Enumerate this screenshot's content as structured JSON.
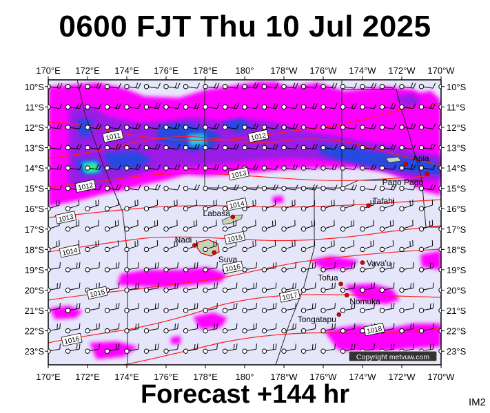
{
  "header": {
    "title": "0600 FJT Thu 10 Jul 2025"
  },
  "footer": {
    "forecast_label": "Forecast +144 hr",
    "image_code": "IM2"
  },
  "copyright": "Copyright metvuw.com",
  "colors": {
    "ocean": "#e6e6fb",
    "land": "#c8d3b8",
    "rain_magenta": "#ff00ff",
    "rain_purple": "#9a1ee6",
    "rain_blue": "#2848e0",
    "rain_cyan": "#20d0e8",
    "rain_green": "#30f070",
    "isobar": "#ff2020"
  },
  "map": {
    "lon_labels_top": [
      "170°E",
      "172°E",
      "174°E",
      "176°E",
      "178°E",
      "180°",
      "178°W",
      "176°W",
      "174°W",
      "172°W",
      "170°W"
    ],
    "lon_labels_bottom": [
      "170°E",
      "172°E",
      "174°E",
      "176°E",
      "178°E",
      "180°",
      "178°W",
      "176°W",
      "174°W",
      "172°W",
      "170°W"
    ],
    "lat_labels": [
      "10°S",
      "11°S",
      "12°S",
      "13°S",
      "14°S",
      "15°S",
      "16°S",
      "17°S",
      "18°S",
      "19°S",
      "20°S",
      "21°S",
      "22°S",
      "23°S"
    ],
    "places": [
      {
        "name": "Apia",
        "lon": -171.8,
        "lat": -13.8
      },
      {
        "name": "Pago Pago",
        "lon": -170.7,
        "lat": -14.3
      },
      {
        "name": "Tafahi",
        "lon": -173.7,
        "lat": -15.85
      },
      {
        "name": "Labasa",
        "lon": 179.4,
        "lat": -16.4
      },
      {
        "name": "Nadi",
        "lon": 177.45,
        "lat": -17.8
      },
      {
        "name": "Suva",
        "lon": 178.45,
        "lat": -18.15
      },
      {
        "name": "Vava'u",
        "lon": -174.0,
        "lat": -18.65
      },
      {
        "name": "Tofua",
        "lon": -175.1,
        "lat": -19.7
      },
      {
        "name": "Nomuka",
        "lon": -174.8,
        "lat": -20.25
      },
      {
        "name": "Tongatapu",
        "lon": -175.2,
        "lat": -21.2
      }
    ],
    "isobars": [
      {
        "label": "1011",
        "lon": 173.3,
        "lat": -12.45
      },
      {
        "label": "1012",
        "lon": -179.3,
        "lat": -12.45
      },
      {
        "label": "1012",
        "lon": 171.9,
        "lat": -14.9
      },
      {
        "label": "1013",
        "lon": 179.7,
        "lat": -14.3
      },
      {
        "label": "1013",
        "lon": 170.9,
        "lat": -16.45
      },
      {
        "label": "1014",
        "lon": 179.6,
        "lat": -15.8
      },
      {
        "label": "1014",
        "lon": 171.1,
        "lat": -18.1
      },
      {
        "label": "1015",
        "lon": 179.5,
        "lat": -17.45
      },
      {
        "label": "1015",
        "lon": 172.5,
        "lat": -20.15
      },
      {
        "label": "1016",
        "lon": 179.4,
        "lat": -18.9
      },
      {
        "label": "1016",
        "lon": 171.2,
        "lat": -22.45
      },
      {
        "label": "1017",
        "lon": -177.7,
        "lat": -20.3
      },
      {
        "label": "1018",
        "lon": -173.4,
        "lat": -21.95
      }
    ]
  }
}
